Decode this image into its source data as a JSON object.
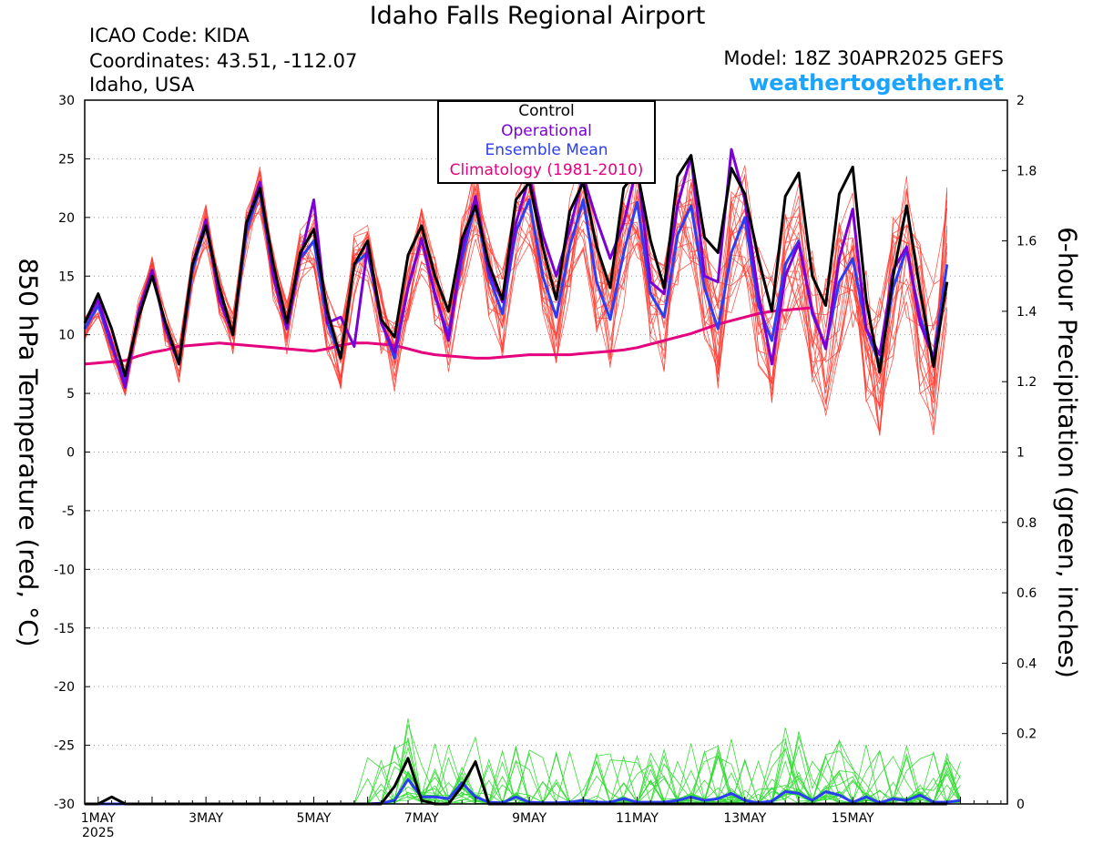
{
  "header": {
    "title": "Idaho Falls Regional Airport",
    "icao": "ICAO Code: KIDA",
    "coordinates": "Coordinates: 43.51, -112.07",
    "region": "Idaho, USA",
    "model": "Model: 18Z 30APR2025 GEFS",
    "site": "weathertogether.net"
  },
  "axes": {
    "left_label": "850 hPa Temperature (red, °C)",
    "right_label": "6-hour Precipitation (green, inches)",
    "left_ticks": [
      "30",
      "25",
      "20",
      "15",
      "10",
      "5",
      "0",
      "-5",
      "-10",
      "-15",
      "-20",
      "-25",
      "-30"
    ],
    "right_ticks": [
      "2",
      "1.8",
      "1.6",
      "1.4",
      "1.2",
      "1",
      "0.8",
      "0.6",
      "0.4",
      "0.2",
      "0"
    ],
    "x_ticks": [
      "1MAY",
      "3MAY",
      "5MAY",
      "7MAY",
      "9MAY",
      "11MAY",
      "13MAY",
      "15MAY"
    ],
    "x_year": "2025"
  },
  "legend": {
    "control": "Control",
    "operational": "Operational",
    "ensemble_mean": "Ensemble Mean",
    "climatology": "Climatology (1981-2010)"
  },
  "colors": {
    "members": "#ff3b30",
    "control": "#000000",
    "operational": "#7a00d6",
    "ensemble_mean": "#2b3df5",
    "climatology": "#e5007e",
    "precip_members": "#33dd33",
    "site": "#1aa3ff"
  },
  "chart_data": {
    "type": "line",
    "x_unit": "days since 00Z 1 MAY 2025, 6-hour steps",
    "x_start": -0.25,
    "x_step": 0.25,
    "temp_ylim": [
      -30,
      30
    ],
    "precip_ylim": [
      0,
      2
    ],
    "grid": true,
    "series": [
      {
        "name": "Control",
        "axis": "temp",
        "values": [
          11,
          13.5,
          10.5,
          6.5,
          11.5,
          15,
          11,
          7.5,
          16,
          19.3,
          14,
          10,
          19.5,
          22.5,
          16,
          11,
          17,
          19,
          12,
          8,
          16,
          18,
          11.3,
          9.8,
          16.8,
          19.3,
          15,
          12,
          18.2,
          21,
          16,
          13,
          21.5,
          23,
          17.5,
          13,
          20.5,
          23,
          17.5,
          14,
          22.5,
          24,
          18,
          14,
          23.5,
          25.3,
          18.3,
          17,
          24.2,
          22,
          16.5,
          12,
          21.8,
          23.8,
          15,
          12.5,
          22,
          24.3,
          13,
          6.8,
          15,
          21,
          13.8,
          7.3,
          14.5
        ]
      },
      {
        "name": "Operational",
        "axis": "temp",
        "values": [
          11,
          13,
          9.3,
          5.5,
          12,
          15.5,
          10.5,
          7.5,
          16,
          19.8,
          13,
          10,
          19.5,
          23,
          15,
          10.5,
          16.5,
          21.5,
          11,
          11.5,
          9,
          17.5,
          11,
          8.5,
          14,
          18.2,
          13.5,
          9.5,
          17.3,
          21.8,
          15.5,
          12.8,
          19.5,
          23.5,
          18.5,
          15,
          19,
          23.5,
          19.8,
          16.5,
          19.5,
          24.5,
          14.5,
          13.5,
          21,
          25.3,
          15,
          14.5,
          25.8,
          21.5,
          13.5,
          7.5,
          15,
          17.8,
          12,
          8.8,
          16.5,
          20.7,
          10.5,
          8.3,
          15.5,
          17.5,
          11,
          8,
          14.5
        ]
      },
      {
        "name": "Ensemble Mean",
        "axis": "temp",
        "values": [
          10.5,
          12.5,
          9,
          6,
          11.8,
          15.5,
          10.5,
          7.5,
          15.5,
          19.3,
          13.5,
          10,
          18.8,
          22.3,
          15,
          10.5,
          16.5,
          18,
          11,
          8,
          16,
          17,
          11.2,
          8,
          14,
          18.2,
          13.3,
          10,
          16.5,
          21.2,
          15,
          11.8,
          18.8,
          21.5,
          15,
          11.5,
          17.5,
          21.5,
          14.5,
          11.3,
          17,
          21.3,
          13.5,
          11.5,
          18.5,
          21,
          14,
          10.5,
          17,
          20,
          12.5,
          9.5,
          16,
          18,
          11.8,
          9,
          14.5,
          16.5,
          10.5,
          7.5,
          14,
          17.3,
          11.5,
          8,
          16
        ]
      },
      {
        "name": "Climatology (1981-2010)",
        "axis": "temp",
        "values": [
          7.5,
          7.6,
          7.7,
          7.8,
          8.2,
          8.5,
          8.7,
          9,
          9.1,
          9.2,
          9.3,
          9.2,
          9.1,
          9,
          8.9,
          8.8,
          8.7,
          8.6,
          8.8,
          9.1,
          9.3,
          9.3,
          9.2,
          9.1,
          8.8,
          8.5,
          8.3,
          8.2,
          8.1,
          8,
          8,
          8.1,
          8.2,
          8.3,
          8.3,
          8.3,
          8.3,
          8.4,
          8.5,
          8.6,
          8.7,
          8.9,
          9.2,
          9.5,
          9.8,
          10.1,
          10.5,
          10.9,
          11.2,
          11.5,
          11.8,
          12,
          12.1,
          12.2,
          12.3
        ]
      },
      {
        "name": "Control",
        "axis": "precip",
        "values": [
          0,
          0,
          0.02,
          0,
          0,
          0,
          0,
          0,
          0,
          0,
          0,
          0,
          0,
          0,
          0,
          0,
          0,
          0,
          0,
          0,
          0,
          0,
          0,
          0.05,
          0.13,
          0.01,
          0,
          0,
          0.05,
          0.12,
          0,
          0,
          0,
          0,
          0,
          0,
          0,
          0,
          0,
          0,
          0,
          0,
          0,
          0,
          0,
          0,
          0,
          0,
          0,
          0,
          0,
          0,
          0,
          0,
          0,
          0,
          0,
          0,
          0,
          0,
          0,
          0,
          0,
          0,
          0
        ]
      },
      {
        "name": "Ensemble Mean",
        "axis": "precip",
        "values": [
          0,
          0,
          0,
          0,
          0,
          0,
          0,
          0,
          0,
          0,
          0,
          0,
          0,
          0,
          0,
          0,
          0,
          0,
          0,
          0,
          0,
          0,
          0.002,
          0.01,
          0.07,
          0.02,
          0.02,
          0.015,
          0.06,
          0.02,
          0.005,
          0.003,
          0.02,
          0.005,
          0.003,
          0.003,
          0.005,
          0.01,
          0.005,
          0.005,
          0.015,
          0.005,
          0.005,
          0.005,
          0.01,
          0.02,
          0.01,
          0.015,
          0.03,
          0.01,
          0.003,
          0.008,
          0.035,
          0.03,
          0.01,
          0.035,
          0.025,
          0.005,
          0.02,
          0.003,
          0.015,
          0.01,
          0.025,
          0.005,
          0.005,
          0.01
        ]
      }
    ]
  }
}
